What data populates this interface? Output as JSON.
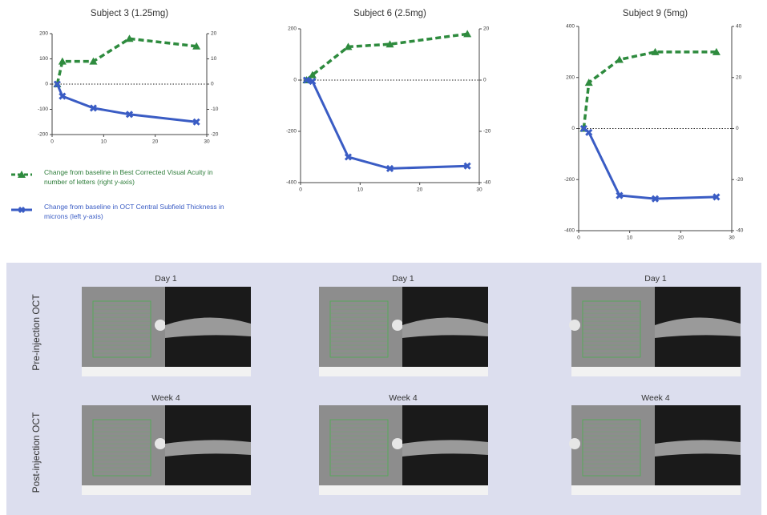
{
  "chart_data": [
    {
      "type": "line",
      "title": "Subject 3 (1.25mg)",
      "x": [
        1,
        2,
        8,
        15,
        28
      ],
      "xlim": [
        0,
        30
      ],
      "xticks": [
        0,
        10,
        20,
        30
      ],
      "ylim": [
        -200,
        200
      ],
      "yticks": [
        -200,
        -100,
        0,
        100,
        200
      ],
      "y2lim": [
        -20,
        20
      ],
      "y2ticks": [
        -20,
        -10,
        0,
        10,
        20
      ],
      "series": [
        {
          "name": "Change from baseline in Best Corrected Visual Acuity in number of letters (right y-axis)",
          "color": "#2e8b3e",
          "line_style": "dashed",
          "marker": "triangle",
          "axis": "y2",
          "values": [
            0,
            9,
            9,
            18,
            15
          ]
        },
        {
          "name": "Change from baseline in OCT Central Subfield Thickness in microns (left y-axis)",
          "color": "#3a5cc4",
          "line_style": "solid",
          "marker": "cross",
          "values": [
            0,
            -48,
            -95,
            -120,
            -150
          ]
        }
      ]
    },
    {
      "type": "line",
      "title": "Subject 6 (2.5mg)",
      "x": [
        1,
        2,
        8,
        15,
        28
      ],
      "xlim": [
        0,
        30
      ],
      "xticks": [
        0,
        10,
        20,
        30
      ],
      "ylim": [
        -400,
        200
      ],
      "yticks": [
        -400,
        -200,
        0,
        200
      ],
      "y2lim": [
        -40,
        20
      ],
      "y2ticks": [
        -40,
        -20,
        0,
        20
      ],
      "series": [
        {
          "color": "#2e8b3e",
          "line_style": "dashed",
          "marker": "triangle",
          "axis": "y2",
          "values": [
            0,
            2,
            13,
            14,
            18
          ]
        },
        {
          "color": "#3a5cc4",
          "line_style": "solid",
          "marker": "cross",
          "values": [
            0,
            -5,
            -300,
            -345,
            -335
          ]
        }
      ]
    },
    {
      "type": "line",
      "title": "Subject 9 (5mg)",
      "x": [
        1,
        2,
        8,
        15,
        27
      ],
      "xlim": [
        0,
        30
      ],
      "xticks": [
        0,
        10,
        20,
        30
      ],
      "ylim": [
        -400,
        400
      ],
      "yticks": [
        -400,
        -200,
        0,
        200,
        400
      ],
      "y2lim": [
        -40,
        40
      ],
      "y2ticks": [
        -40,
        -20,
        0,
        20,
        40
      ],
      "series": [
        {
          "color": "#2e8b3e",
          "line_style": "dashed",
          "marker": "triangle",
          "axis": "y2",
          "values": [
            0,
            18,
            27,
            30,
            30
          ]
        },
        {
          "color": "#3a5cc4",
          "line_style": "solid",
          "marker": "cross",
          "values": [
            0,
            -15,
            -262,
            -275,
            -268
          ]
        }
      ]
    }
  ],
  "oct_panel": {
    "row_labels": [
      "Pre-injection OCT",
      "Post-injection OCT"
    ],
    "captions": [
      [
        "Day 1",
        "Day 1",
        "Day 1"
      ],
      [
        "Week 4",
        "Week 4",
        "Week 4"
      ]
    ]
  }
}
